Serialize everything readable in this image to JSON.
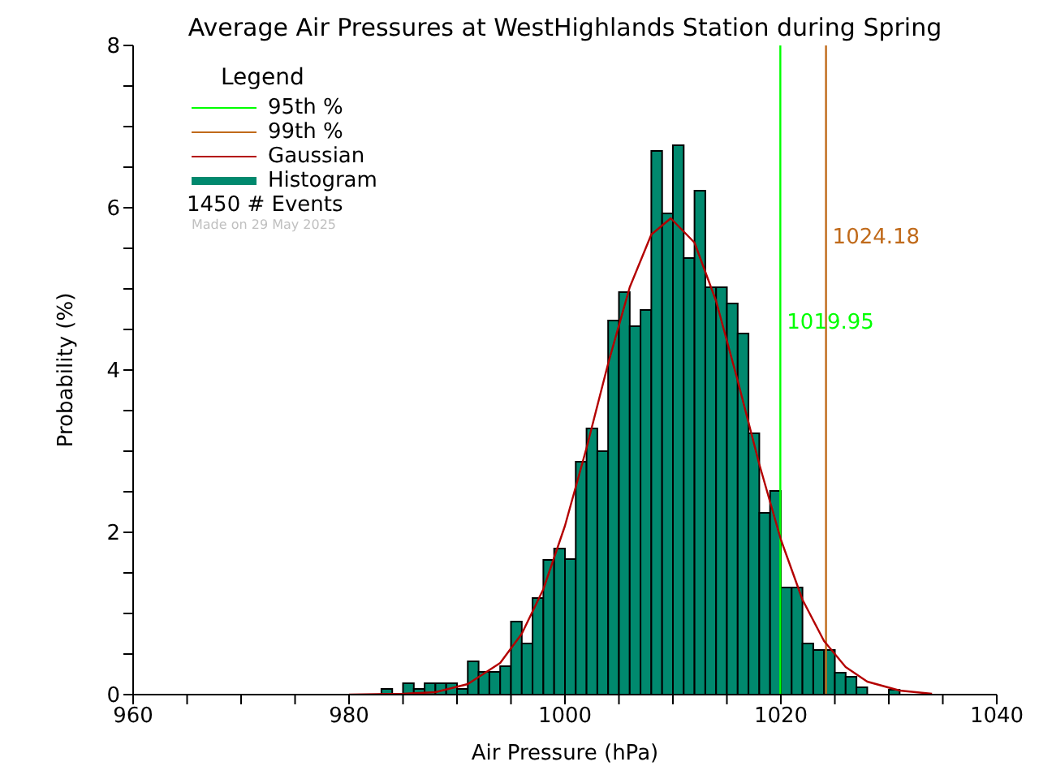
{
  "chart_data": {
    "type": "histogram",
    "title": "Average Air Pressures at WestHighlands Station during Spring",
    "xlabel": "Air Pressure (hPa)",
    "ylabel": "Probability (%)",
    "legend_title": "Legend",
    "legend": "top left",
    "xlim": [
      960,
      1040
    ],
    "xticks": [
      960,
      {
        "value": 965,
        "label": null
      },
      {
        "value": 970,
        "label": null
      },
      {
        "value": 975,
        "label": null
      },
      980,
      {
        "value": 985,
        "label": null
      },
      {
        "value": 990,
        "label": null
      },
      {
        "value": 995,
        "label": null
      },
      1000,
      {
        "value": 1005,
        "label": null
      },
      {
        "value": 1010,
        "label": null
      },
      {
        "value": 1015,
        "label": null
      },
      1020,
      {
        "value": 1025,
        "label": null
      },
      {
        "value": 1030,
        "label": null
      },
      {
        "value": 1035,
        "label": null
      },
      1040
    ],
    "ylim": [
      0,
      8
    ],
    "yticks": [
      0,
      {
        "value": 0.5,
        "label": null
      },
      {
        "value": 1,
        "label": null
      },
      {
        "value": 1.5,
        "label": null
      },
      2,
      {
        "value": 2.5,
        "label": null
      },
      {
        "value": 3,
        "label": null
      },
      {
        "value": 3.5,
        "label": null
      },
      4,
      {
        "value": 4.5,
        "label": null
      },
      {
        "value": 5,
        "label": null
      },
      {
        "value": 5.5,
        "label": null
      },
      6,
      {
        "value": 6.5,
        "label": null
      },
      {
        "value": 7,
        "label": null
      },
      {
        "value": 7.5,
        "label": null
      },
      8
    ],
    "series": [
      {
        "type": "line",
        "name": "95th %",
        "color": "#00ff00",
        "x": [
          1019.95,
          1019.95
        ],
        "values": [
          0,
          8
        ]
      },
      {
        "type": "line",
        "name": "99th %",
        "color": "#c06a1a",
        "x": [
          1024.18,
          1024.18
        ],
        "values": [
          0,
          8
        ]
      },
      {
        "type": "line",
        "name": "Gaussian",
        "color": "#b40000",
        "x": [
          980,
          985,
          988,
          991,
          994,
          996,
          998,
          1000,
          1002,
          1004,
          1006,
          1008,
          1009.8,
          1012,
          1014,
          1016,
          1018,
          1020,
          1022,
          1024,
          1026,
          1028,
          1031,
          1034
        ],
        "values": [
          0,
          0.01,
          0.03,
          0.13,
          0.39,
          0.75,
          1.3,
          2.08,
          3.04,
          4.08,
          5.02,
          5.67,
          5.87,
          5.57,
          4.85,
          3.87,
          2.84,
          1.91,
          1.17,
          0.66,
          0.34,
          0.16,
          0.05,
          0.01
        ]
      },
      {
        "name": "Histogram",
        "color": "#00896e",
        "bins": [
          983,
          984,
          985,
          986,
          987,
          988,
          989,
          990,
          991,
          992,
          993,
          994,
          995,
          996,
          997,
          998,
          999,
          1000,
          1001,
          1002,
          1003,
          1004,
          1005,
          1006,
          1007,
          1008,
          1009,
          1010,
          1011,
          1012,
          1013,
          1014,
          1015,
          1016,
          1017,
          1018,
          1019,
          1020,
          1021,
          1022,
          1023,
          1024,
          1025,
          1026,
          1027,
          1028,
          1029,
          1030,
          1031
        ],
        "values": [
          0.07,
          0,
          0.14,
          0.07,
          0.14,
          0.14,
          0.14,
          0.07,
          0.41,
          0.28,
          0.28,
          0.35,
          0.9,
          0.63,
          1.19,
          1.66,
          1.8,
          1.67,
          2.87,
          3.28,
          3.0,
          4.61,
          4.96,
          4.54,
          4.74,
          6.7,
          5.93,
          6.77,
          5.38,
          6.21,
          5.02,
          5.02,
          4.82,
          4.45,
          3.22,
          2.24,
          2.51,
          1.32,
          1.32,
          0.63,
          0.55,
          0.55,
          0.27,
          0.22,
          0.09,
          0,
          0,
          0.06
        ]
      }
    ],
    "annotations": [
      {
        "text": "1019.95",
        "x": 1019.95,
        "y": 4.6
      },
      {
        "text": "1024.18",
        "x": 1024.18,
        "y": 5.65
      },
      "1450 # Events",
      "Made on 29 May 2025"
    ]
  }
}
